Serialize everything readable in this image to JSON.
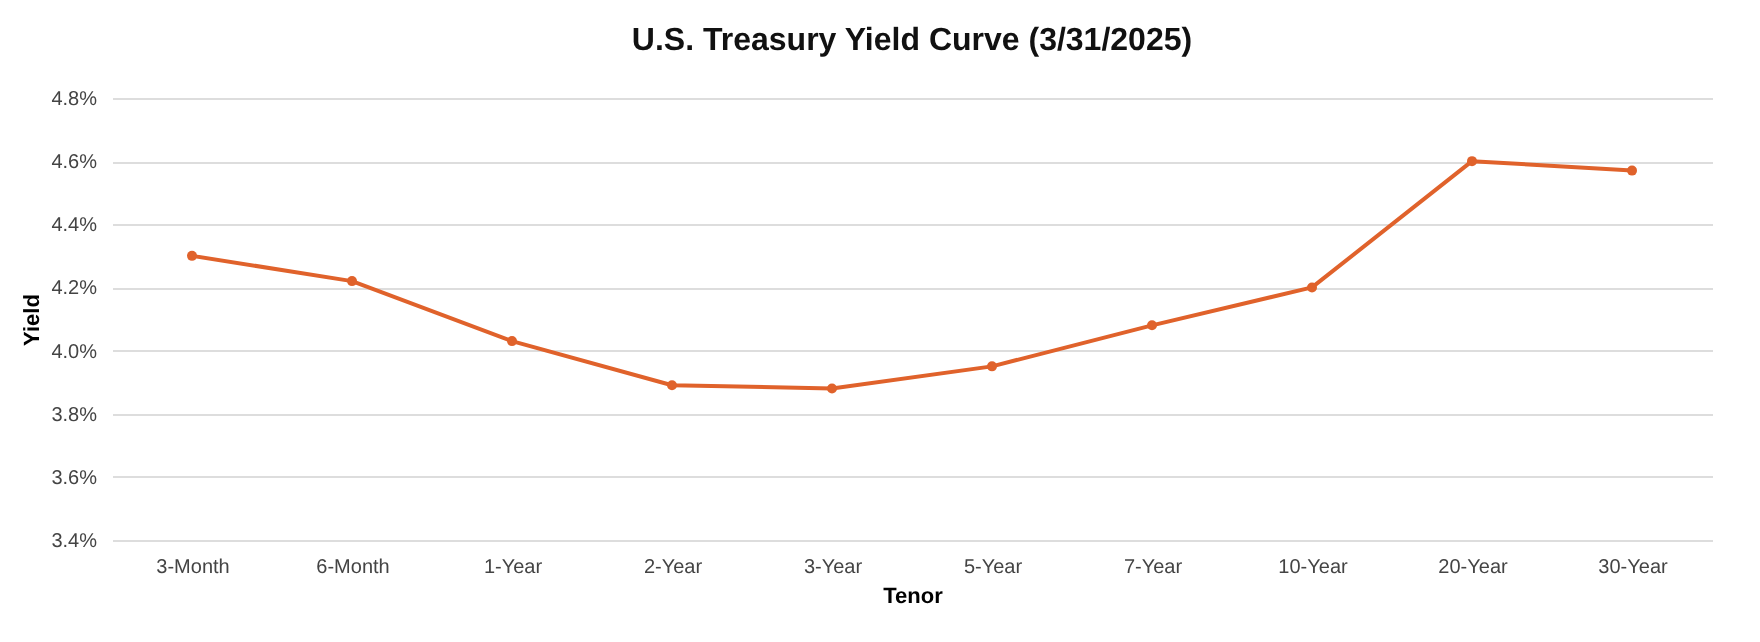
{
  "chart_data": {
    "type": "line",
    "title": "U.S. Treasury Yield Curve (3/31/2025)",
    "xlabel": "Tenor",
    "ylabel": "Yield",
    "categories": [
      "3-Month",
      "6-Month",
      "1-Year",
      "2-Year",
      "3-Year",
      "5-Year",
      "7-Year",
      "10-Year",
      "20-Year",
      "30-Year"
    ],
    "series": [
      {
        "color": "#e0622b",
        "values": [
          4.3,
          4.22,
          4.03,
          3.89,
          3.88,
          3.95,
          4.08,
          4.2,
          4.6,
          4.57
        ]
      }
    ],
    "ylim": [
      3.4,
      4.8
    ],
    "yticks": [
      {
        "value": 3.4,
        "label": "3.4%"
      },
      {
        "value": 3.6,
        "label": "3.6%"
      },
      {
        "value": 3.8,
        "label": "3.8%"
      },
      {
        "value": 4.0,
        "label": "4.0%"
      },
      {
        "value": 4.2,
        "label": "4.2%"
      },
      {
        "value": 4.4,
        "label": "4.4%"
      },
      {
        "value": 4.6,
        "label": "4.6%"
      },
      {
        "value": 4.8,
        "label": "4.8%"
      }
    ],
    "grid": "y",
    "legend": false,
    "marker": "circle",
    "line_style": "solid"
  }
}
